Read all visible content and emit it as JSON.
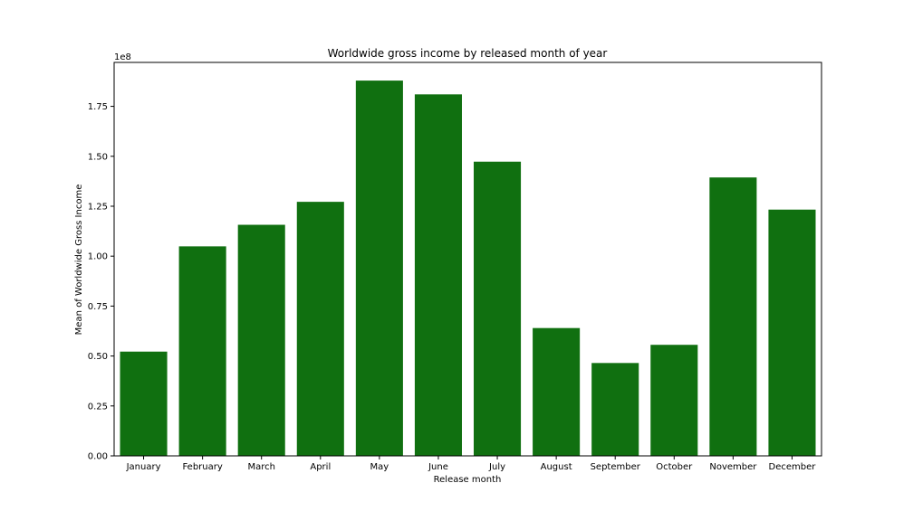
{
  "chart_data": {
    "type": "bar",
    "title": "Worldwide gross income by released month of year",
    "xlabel": "Release month",
    "ylabel": "Mean of Worldwide Gross Income",
    "y_offset_label": "1e8",
    "categories": [
      "January",
      "February",
      "March",
      "April",
      "May",
      "June",
      "July",
      "August",
      "September",
      "October",
      "November",
      "December"
    ],
    "values": [
      52200000,
      104900000,
      115700000,
      127200000,
      187900000,
      181000000,
      147300000,
      64000000,
      46500000,
      55600000,
      139400000,
      123300000
    ],
    "ylim": [
      0,
      197000000
    ],
    "yticks": [
      0,
      25000000,
      50000000,
      75000000,
      100000000,
      125000000,
      150000000,
      175000000
    ],
    "ytick_labels": [
      "0.00",
      "0.25",
      "0.50",
      "0.75",
      "1.00",
      "1.25",
      "1.50",
      "1.75"
    ],
    "bar_color": "#107010",
    "grid": false,
    "legend": "none"
  }
}
